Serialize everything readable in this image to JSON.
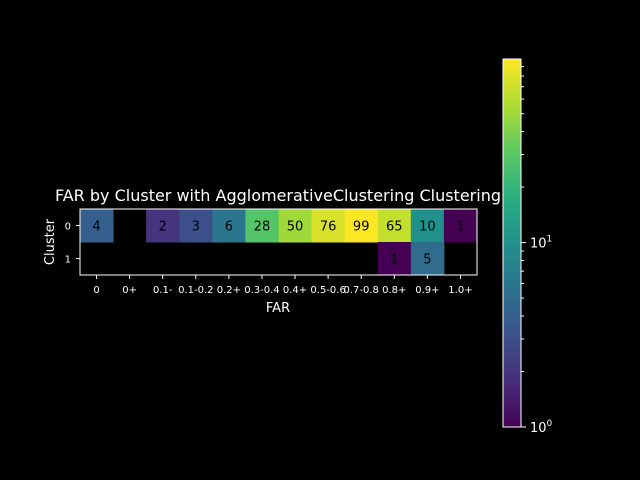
{
  "chart_data": {
    "type": "heatmap",
    "title": "FAR by Cluster with AgglomerativeClustering Clustering",
    "xlabel": "FAR",
    "ylabel": "Cluster",
    "x_tick_labels": [
      "0",
      "0+",
      "0.1-",
      "0.1-0.2",
      "0.2+",
      "0.3-0.4",
      "0.4+",
      "0.5-0.6",
      "0.7-0.8",
      "0.8+",
      "0.9+",
      "1.0+"
    ],
    "y_tick_labels": [
      "0",
      "1"
    ],
    "values": [
      [
        4,
        null,
        2,
        3,
        6,
        28,
        50,
        76,
        99,
        65,
        10,
        1
      ],
      [
        null,
        null,
        null,
        null,
        null,
        null,
        null,
        null,
        null,
        1,
        5,
        null
      ]
    ],
    "color_scale": "log",
    "colormap": "viridis",
    "colorbar_range": [
      1,
      99
    ],
    "colorbar_ticks": [
      {
        "base": "10",
        "exp": "0"
      },
      {
        "base": "10",
        "exp": "1"
      }
    ],
    "missing_color": "#000000"
  }
}
